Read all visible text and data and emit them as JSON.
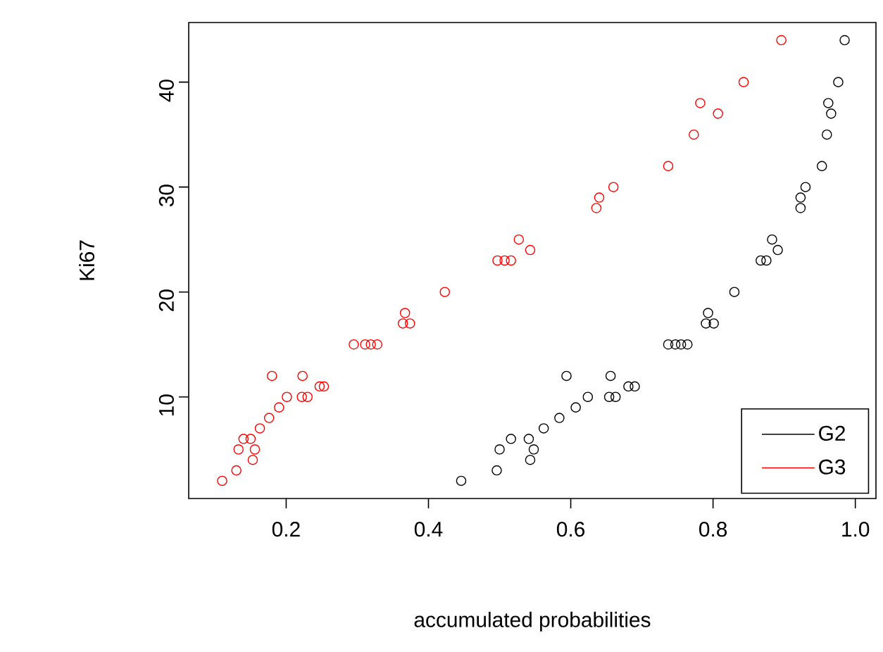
{
  "chart_data": {
    "type": "scatter",
    "xlabel": "accumulated probabilities",
    "ylabel": "Ki67",
    "xlim": [
      0.063,
      1.029
    ],
    "ylim": [
      0.32,
      45.68
    ],
    "xticks": [
      {
        "value": 0.2,
        "label": "0.2"
      },
      {
        "value": 0.4,
        "label": "0.4"
      },
      {
        "value": 0.6,
        "label": "0.6"
      },
      {
        "value": 0.8,
        "label": "0.8"
      },
      {
        "value": 1.0,
        "label": "1.0"
      }
    ],
    "yticks": [
      10,
      20,
      30,
      40
    ],
    "marker": "circle",
    "legend": "bottom right",
    "grid": false,
    "series": [
      {
        "name": "G2",
        "color": "#000000",
        "x": [
          0.446,
          0.496,
          0.5,
          0.516,
          0.541,
          0.548,
          0.543,
          0.562,
          0.584,
          0.607,
          0.624,
          0.594,
          0.656,
          0.654,
          0.663,
          0.681,
          0.69,
          0.737,
          0.747,
          0.755,
          0.764,
          0.793,
          0.79,
          0.801,
          0.83,
          0.867,
          0.875,
          0.883,
          0.891,
          0.923,
          0.923,
          0.93,
          0.953,
          0.96,
          0.966,
          0.962,
          0.976,
          0.985
        ],
        "values": [
          2,
          3,
          5,
          6,
          6,
          5,
          4,
          7,
          8,
          9,
          10,
          12,
          12,
          10,
          10,
          11,
          11,
          15,
          15,
          15,
          15,
          18,
          17,
          17,
          20,
          23,
          23,
          25,
          24,
          28,
          29,
          30,
          32,
          35,
          37,
          38,
          40,
          44
        ]
      },
      {
        "name": "G3",
        "color": "#ff0000",
        "x": [
          0.11,
          0.13,
          0.133,
          0.14,
          0.15,
          0.156,
          0.153,
          0.163,
          0.176,
          0.19,
          0.201,
          0.18,
          0.223,
          0.222,
          0.23,
          0.247,
          0.253,
          0.295,
          0.311,
          0.319,
          0.328,
          0.367,
          0.364,
          0.374,
          0.423,
          0.497,
          0.507,
          0.516,
          0.527,
          0.543,
          0.636,
          0.64,
          0.66,
          0.737,
          0.773,
          0.782,
          0.807,
          0.843,
          0.896
        ],
        "values": [
          2,
          3,
          5,
          6,
          6,
          5,
          4,
          7,
          8,
          9,
          10,
          12,
          12,
          10,
          10,
          11,
          11,
          15,
          15,
          15,
          15,
          18,
          17,
          17,
          20,
          23,
          23,
          23,
          25,
          24,
          28,
          29,
          30,
          32,
          35,
          38,
          37,
          40,
          44
        ]
      }
    ]
  }
}
